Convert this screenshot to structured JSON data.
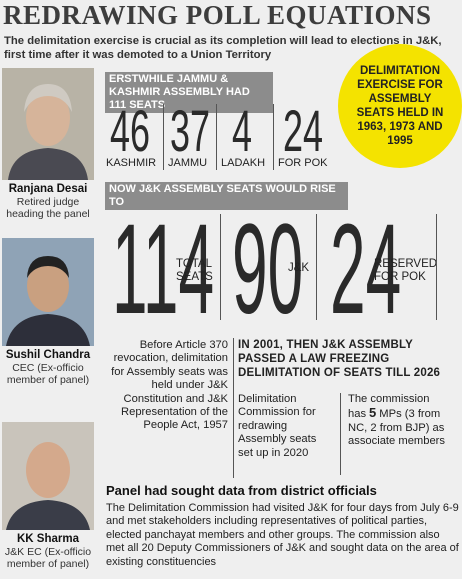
{
  "header": {
    "title": "REDRAWING POLL EQUATIONS",
    "subtitle": "The delimitation exercise is crucial as its completion will lead to elections in J&K, first time after it was demoted to a Union Territory"
  },
  "people": [
    {
      "name": "Ranjana Desai",
      "role": "Retired judge heading the panel"
    },
    {
      "name": "Sushil Chandra",
      "role": "CEC (Ex-officio member of panel)"
    },
    {
      "name": "KK Sharma",
      "role": "J&K EC (Ex-officio member of panel)"
    }
  ],
  "callout": "DELIMITATION EXERCISE FOR ASSEMBLY SEATS HELD IN 1963, 1973 AND 1995",
  "erstwhile": {
    "heading": "ERSTWHILE JAMMU & KASHMIR ASSEMBLY HAD 111 SEATS",
    "items": [
      {
        "value": 46,
        "label": "KASHMIR"
      },
      {
        "value": 37,
        "label": "JAMMU"
      },
      {
        "value": 4,
        "label": "LADAKH"
      },
      {
        "value": 24,
        "label": "FOR POK"
      }
    ]
  },
  "now": {
    "heading": "NOW J&K ASSEMBLY SEATS WOULD RISE TO",
    "items": [
      {
        "value": 114,
        "label": "TOTAL SEATS"
      },
      {
        "value": 90,
        "label": "J&K"
      },
      {
        "value": 24,
        "label": "RESERVED FOR POK"
      }
    ]
  },
  "history": "Before Article 370 revocation, delimitation for Assembly seats was held under J&K Constitution and J&K Representation of the People Act, 1957",
  "freeze": "IN 2001, THEN J&K ASSEMBLY PASSED A LAW FREEZING DELIMITATION OF SEATS TILL 2026",
  "commission": "Delimitation Commission for redrawing Assembly seats set up in 2020",
  "members": {
    "before": "The commission has",
    "count": 5,
    "after": "MPs (3 from NC, 2 from BJP) as associate members"
  },
  "panel": {
    "heading": "Panel had sought data from district officials",
    "text": "The Delimitation Commission had visited J&K for four days from July 6-9 and met stakeholders including representatives of political parties, elected panchayat members and other groups. The commission also met all 20 Deputy Commissioners of J&K and sought data on the area of existing constituencies"
  }
}
